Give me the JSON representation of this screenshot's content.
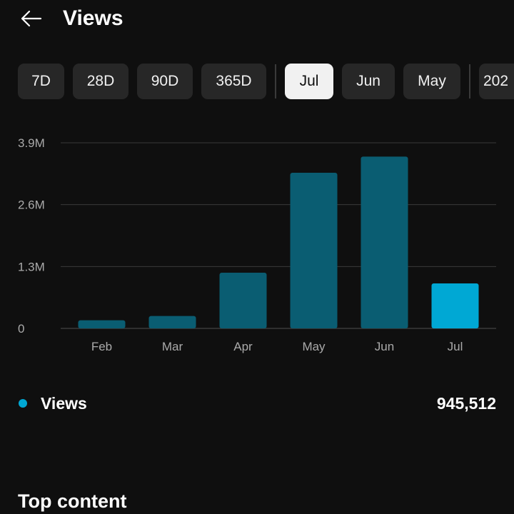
{
  "header": {
    "title": "Views",
    "back_icon": "arrow-left-icon"
  },
  "range_chips": [
    {
      "label": "7D",
      "selected": false
    },
    {
      "label": "28D",
      "selected": false
    },
    {
      "label": "90D",
      "selected": false
    },
    {
      "label": "365D",
      "selected": false
    },
    {
      "label": "Jul",
      "selected": true
    },
    {
      "label": "Jun",
      "selected": false
    },
    {
      "label": "May",
      "selected": false
    },
    {
      "label": "202",
      "selected": false
    }
  ],
  "chart_data": {
    "type": "bar",
    "categories": [
      "Feb",
      "Mar",
      "Apr",
      "May",
      "Jun",
      "Jul"
    ],
    "values": [
      170000,
      260000,
      1170000,
      3270000,
      3610000,
      945512
    ],
    "highlight_category": "Jul",
    "y_ticks": [
      {
        "value": 0,
        "label": "0"
      },
      {
        "value": 1300000,
        "label": "1.3M"
      },
      {
        "value": 2600000,
        "label": "2.6M"
      },
      {
        "value": 3900000,
        "label": "3.9M"
      }
    ],
    "ylim": [
      0,
      3900000
    ],
    "grid": true,
    "colors": {
      "bar": "#0a5d72",
      "highlight": "#00a8d4",
      "grid": "#3a3a3a",
      "tick_text": "#aaaaaa"
    }
  },
  "legend": {
    "label": "Views",
    "value": "945,512",
    "dot_color": "#00a8d4"
  },
  "top_content": {
    "title": "Top content"
  }
}
